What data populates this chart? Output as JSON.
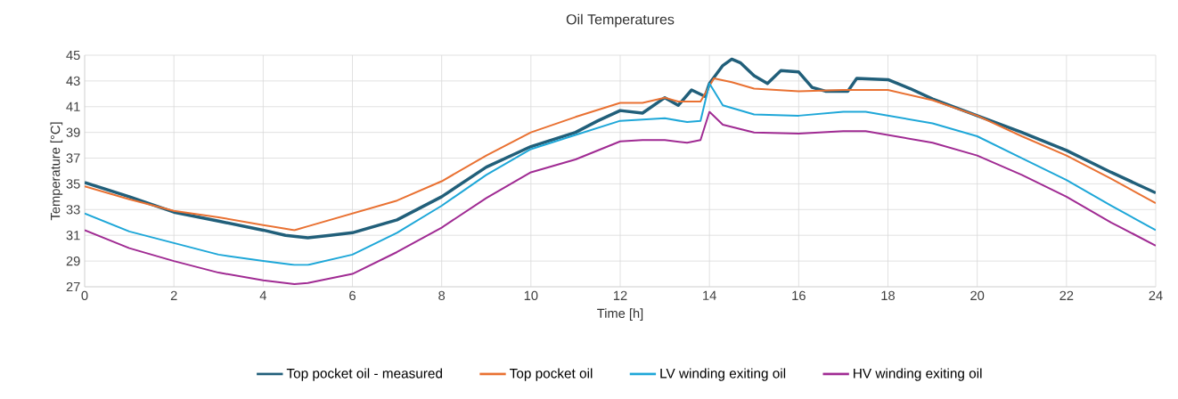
{
  "chart_data": {
    "type": "line",
    "title": "Oil Temperatures",
    "xlabel": "Time [h]",
    "ylabel": "Temperature [°C]",
    "xlim": [
      0,
      24
    ],
    "xticks": [
      0,
      2,
      4,
      6,
      8,
      10,
      12,
      14,
      16,
      18,
      20,
      22,
      24
    ],
    "ylim": [
      27,
      45
    ],
    "yticks": [
      27,
      29,
      31,
      33,
      35,
      37,
      39,
      41,
      43,
      45
    ],
    "grid": true,
    "legend": "bottom",
    "marker": "none",
    "line_style": "solid",
    "series": [
      {
        "name": "Top pocket oil - measured",
        "color": "#215f7a",
        "x": [
          0,
          1,
          2,
          3,
          4,
          4.5,
          5,
          5.5,
          6,
          7,
          8,
          9,
          10,
          11,
          11.5,
          12,
          12.5,
          13,
          13.3,
          13.6,
          13.9,
          14,
          14.3,
          14.5,
          14.7,
          15,
          15.3,
          15.6,
          16,
          16.3,
          16.6,
          17.1,
          17.3,
          18,
          18.5,
          19,
          20,
          21,
          22,
          23,
          24
        ],
        "values": [
          35.1,
          34.0,
          32.8,
          32.1,
          31.4,
          31.0,
          30.8,
          31.0,
          31.2,
          32.2,
          34.0,
          36.3,
          37.9,
          39.0,
          39.9,
          40.7,
          40.5,
          41.7,
          41.1,
          42.3,
          41.8,
          42.8,
          44.2,
          44.7,
          44.4,
          43.4,
          42.8,
          43.8,
          43.7,
          42.5,
          42.2,
          42.2,
          43.2,
          43.1,
          42.4,
          41.6,
          40.3,
          39.0,
          37.6,
          35.9,
          34.3
        ]
      },
      {
        "name": "Top pocket oil",
        "color": "#e97132",
        "x": [
          0,
          1,
          2,
          3,
          4,
          4.7,
          5,
          6,
          7,
          8,
          9,
          10,
          11,
          12,
          12.5,
          13,
          13.3,
          13.8,
          14.1,
          14.5,
          15,
          16,
          17,
          18,
          19,
          20,
          21,
          22,
          23,
          24
        ],
        "values": [
          34.8,
          33.8,
          32.9,
          32.4,
          31.8,
          31.4,
          31.7,
          32.7,
          33.7,
          35.2,
          37.2,
          39.0,
          40.2,
          41.3,
          41.3,
          41.7,
          41.4,
          41.4,
          43.2,
          42.9,
          42.4,
          42.2,
          42.3,
          42.3,
          41.5,
          40.3,
          38.7,
          37.2,
          35.4,
          33.5
        ]
      },
      {
        "name": "LV winding exiting oil",
        "color": "#1ea7d8",
        "x": [
          0,
          1,
          2,
          3,
          4,
          4.7,
          5,
          6,
          7,
          8,
          9,
          10,
          11,
          12,
          13,
          13.5,
          13.8,
          14,
          14.3,
          15,
          16,
          17,
          17.5,
          18,
          19,
          20,
          21,
          22,
          23,
          24
        ],
        "values": [
          32.7,
          31.3,
          30.4,
          29.5,
          29.0,
          28.7,
          28.7,
          29.5,
          31.2,
          33.3,
          35.7,
          37.7,
          38.8,
          39.9,
          40.1,
          39.8,
          39.9,
          42.8,
          41.1,
          40.4,
          40.3,
          40.6,
          40.6,
          40.3,
          39.7,
          38.7,
          37.0,
          35.3,
          33.3,
          31.4
        ]
      },
      {
        "name": "HV winding exiting oil",
        "color": "#a02b93",
        "x": [
          0,
          1,
          2,
          3,
          4,
          4.7,
          5,
          6,
          7,
          8,
          9,
          10,
          11,
          12,
          12.5,
          13,
          13.5,
          13.8,
          14,
          14.3,
          15,
          16,
          17,
          17.5,
          18,
          19,
          20,
          21,
          22,
          23,
          24
        ],
        "values": [
          31.4,
          30.0,
          29.0,
          28.1,
          27.5,
          27.2,
          27.3,
          28.0,
          29.7,
          31.6,
          33.9,
          35.9,
          36.9,
          38.3,
          38.4,
          38.4,
          38.2,
          38.4,
          40.6,
          39.6,
          39.0,
          38.9,
          39.1,
          39.1,
          38.8,
          38.2,
          37.2,
          35.7,
          34.0,
          32.0,
          30.2
        ]
      }
    ]
  }
}
